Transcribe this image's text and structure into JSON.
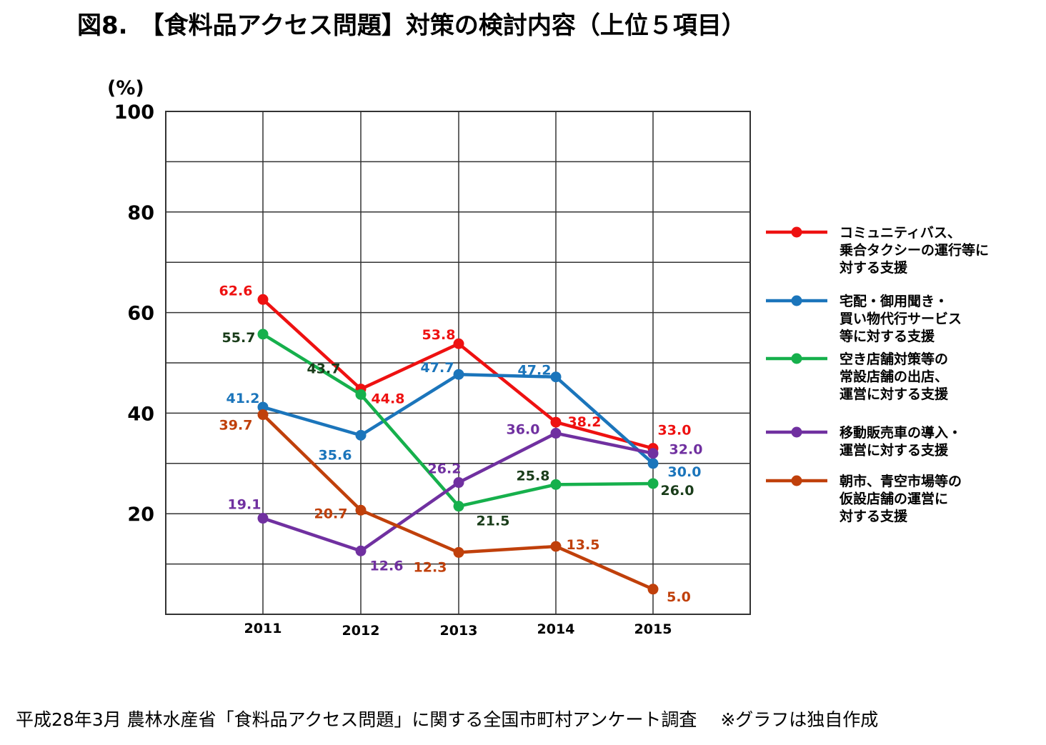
{
  "title": "図8.　【食料品アクセス問題】対策の検討内容（上位５項目）",
  "source_note": "平成28年3月 農林水産省「食料品アクセス問題」に関する全国市町村アンケート調査　 ※グラフは独自作成",
  "chart_data": {
    "type": "line",
    "x": [
      "2011",
      "2012",
      "2013",
      "2014",
      "2015"
    ],
    "ylabel": "(%)",
    "ylim": [
      0,
      100
    ],
    "yticks": [
      "100",
      "80",
      "60",
      "40",
      "20"
    ],
    "ytick_values": [
      100,
      80,
      60,
      40,
      20
    ],
    "grid": true,
    "legend_position": "right",
    "series": [
      {
        "name": "コミュニティバス、乗合タクシーの運行等に対する支援",
        "legend_lines": [
          "コミュニティバス、",
          "乗合タクシーの運行等に",
          "対する支援"
        ],
        "color": "#ee1111",
        "label_color": "#ee1111",
        "values": [
          62.6,
          44.8,
          53.8,
          38.2,
          33.0
        ],
        "labels": [
          "62.6",
          "44.8",
          "53.8",
          "38.2",
          "33.0"
        ]
      },
      {
        "name": "宅配・御用聞き・買い物代行サービス等に対する支援",
        "legend_lines": [
          "宅配・御用聞き・",
          "買い物代行サービス",
          "等に対する支援"
        ],
        "color": "#1b75bb",
        "label_color": "#1b75bb",
        "values": [
          41.2,
          35.6,
          47.7,
          47.2,
          30.0
        ],
        "labels": [
          "41.2",
          "35.6",
          "47.7",
          "47.2",
          "30.0"
        ]
      },
      {
        "name": "空き店舗対策等の常設店舗の出店、運営に対する支援",
        "legend_lines": [
          "空き店舗対策等の",
          "常設店舗の出店、",
          "運営に対する支援"
        ],
        "color": "#16b04c",
        "label_color": "#1a3d1a",
        "values": [
          55.7,
          43.7,
          21.5,
          25.8,
          26.0
        ],
        "labels": [
          "55.7",
          "43.7",
          "21.5",
          "25.8",
          "26.0"
        ]
      },
      {
        "name": "移動販売車の導入・運営に対する支援",
        "legend_lines": [
          "移動販売車の導入・",
          "運営に対する支援"
        ],
        "color": "#7030a0",
        "label_color": "#7030a0",
        "values": [
          19.1,
          12.6,
          26.2,
          36.0,
          32.0
        ],
        "labels": [
          "19.1",
          "12.6",
          "26.2",
          "36.0",
          "32.0"
        ]
      },
      {
        "name": "朝市、青空市場等の仮設店舗の運営に対する支援",
        "legend_lines": [
          "朝市、青空市場等の",
          "仮設店舗の運営に",
          "対する支援"
        ],
        "color": "#c0400b",
        "label_color": "#c0400b",
        "values": [
          39.7,
          20.7,
          12.3,
          13.5,
          5.0
        ],
        "labels": [
          "39.7",
          "20.7",
          "12.3",
          "13.5",
          "5.0"
        ]
      }
    ]
  }
}
